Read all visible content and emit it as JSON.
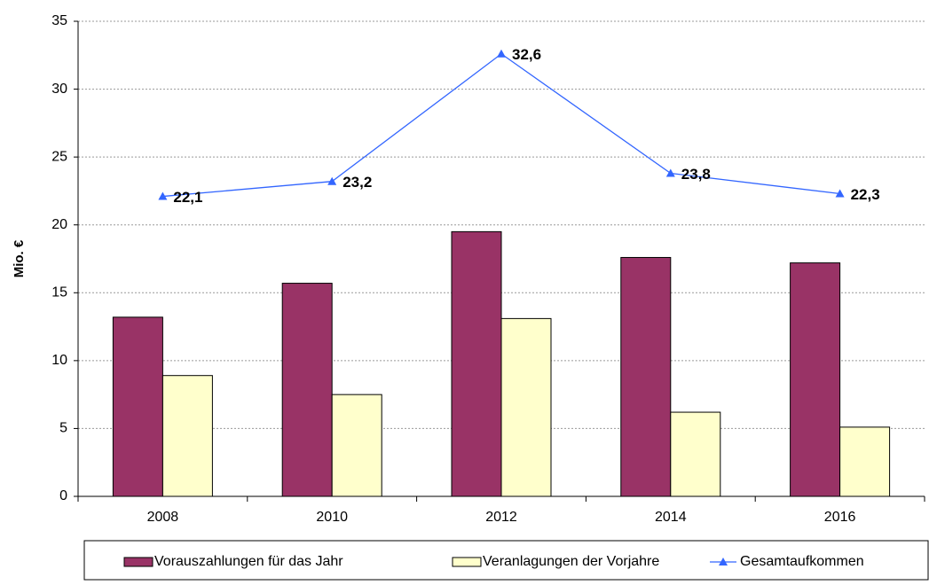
{
  "chart_data": {
    "type": "bar",
    "y_label": "Mio. €",
    "categories": [
      "2008",
      "2010",
      "2012",
      "2014",
      "2016"
    ],
    "series": [
      {
        "name": "Vorauszahlungen für das Jahr",
        "type": "bar",
        "color": "#993366",
        "values": [
          13.2,
          15.7,
          19.5,
          17.6,
          17.2
        ]
      },
      {
        "name": "Veranlagungen der Vorjahre",
        "type": "bar",
        "color": "#ffffcc",
        "values": [
          8.9,
          7.5,
          13.1,
          6.2,
          5.1
        ]
      },
      {
        "name": "Gesamtaufkommen",
        "type": "line",
        "color": "#3366ff",
        "values": [
          22.1,
          23.2,
          32.6,
          23.8,
          22.3
        ],
        "value_labels": [
          "22,1",
          "23,2",
          "32,6",
          "23,8",
          "22,3"
        ]
      }
    ],
    "ylim": [
      0,
      35
    ],
    "yticks": [
      0,
      5,
      10,
      15,
      20,
      25,
      30,
      35
    ],
    "grid": true,
    "legend": "bottom"
  }
}
